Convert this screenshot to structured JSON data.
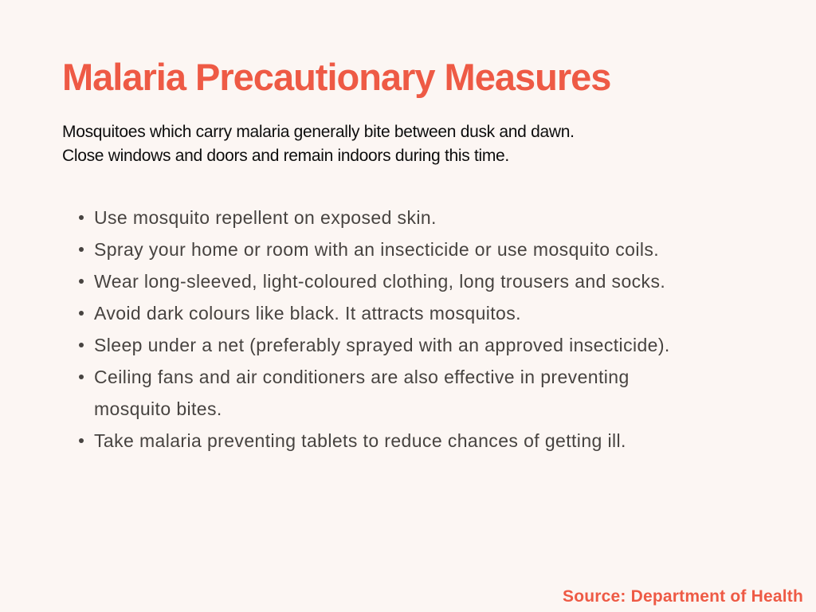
{
  "page": {
    "title": "Malaria Precautionary Measures",
    "subtitle_line1": "Mosquitoes which carry malaria generally bite between dusk and dawn.",
    "subtitle_line2": "Close windows and doors and remain indoors during this time.",
    "bullets": [
      "Use mosquito repellent on exposed skin.",
      "Spray your home or room with an insecticide or use mosquito coils.",
      "Wear long-sleeved, light-coloured clothing, long trousers and socks.",
      "Avoid dark colours like black. It attracts mosquitos.",
      "Sleep under a net (preferably sprayed with an approved insecticide).",
      "Ceiling fans and air conditioners are also effective in preventing mosquito bites.",
      "Take malaria preventing tablets to reduce chances of getting ill."
    ],
    "source": "Source: Department of Health"
  },
  "colors": {
    "background": "#FCF6F3",
    "accent": "#EE5A45",
    "body_text": "#474340",
    "subtitle_text": "#0D0D0D"
  }
}
